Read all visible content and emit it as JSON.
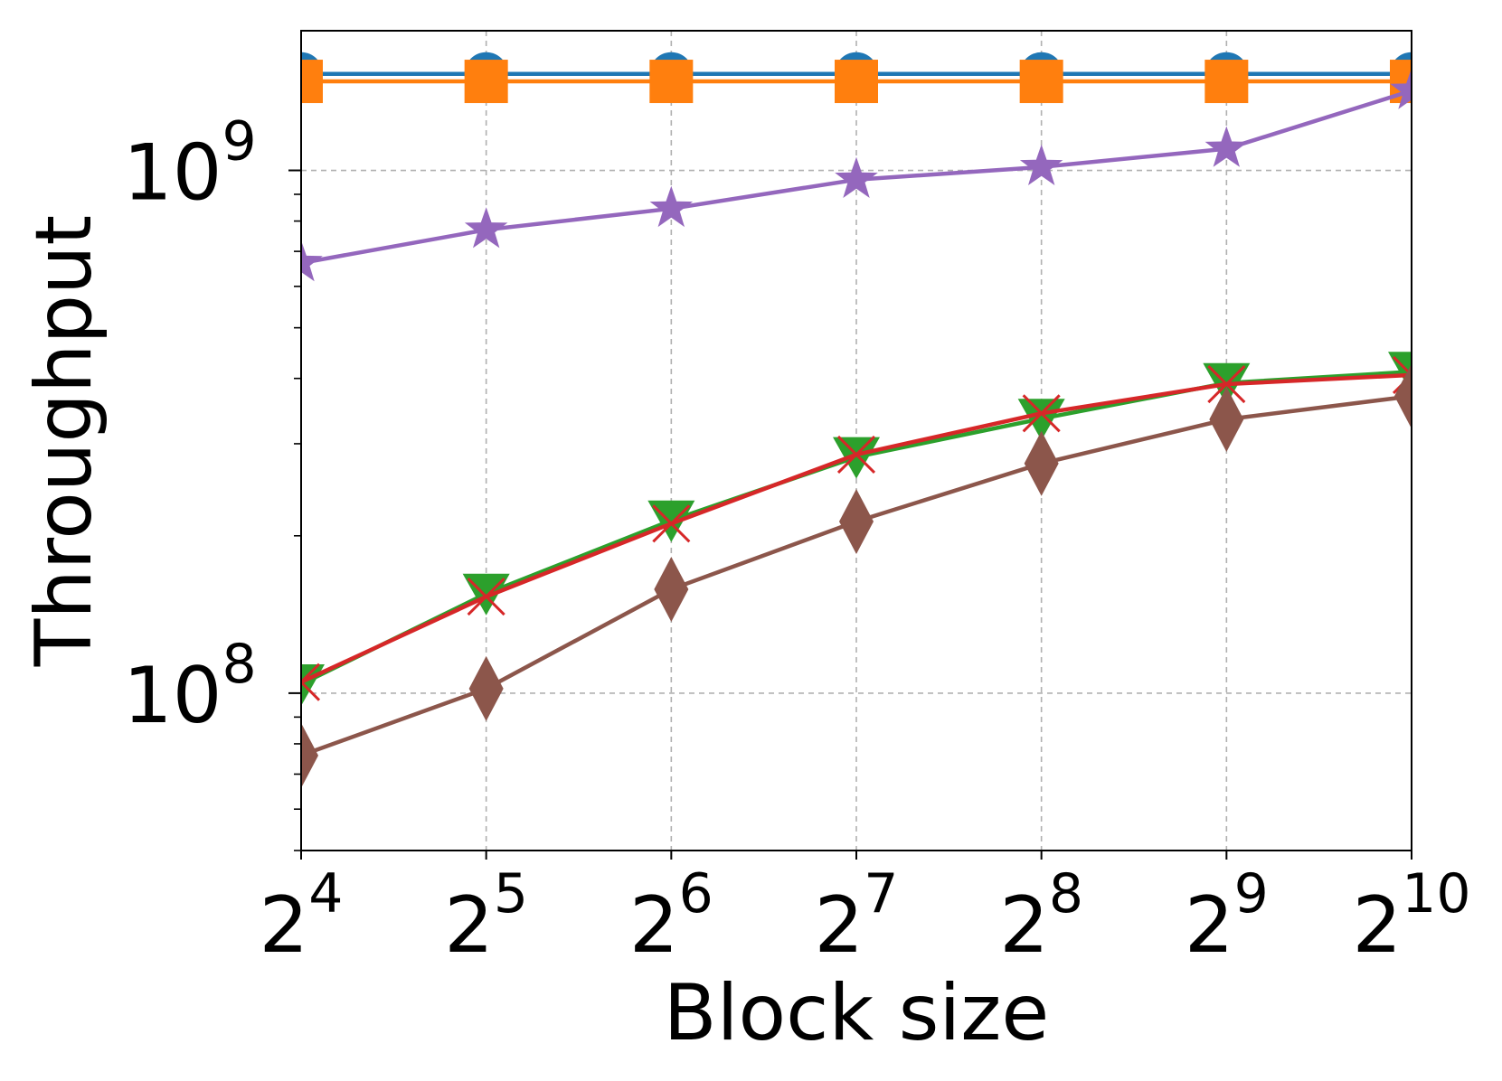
{
  "chart_data": {
    "type": "line",
    "xlabel": "Block size",
    "ylabel": "Throughput",
    "x_scale": "log2",
    "y_scale": "log10",
    "x": [
      16,
      32,
      64,
      128,
      256,
      512,
      1024
    ],
    "x_tick_labels": [
      {
        "base": "2",
        "exp": "4"
      },
      {
        "base": "2",
        "exp": "5"
      },
      {
        "base": "2",
        "exp": "6"
      },
      {
        "base": "2",
        "exp": "7"
      },
      {
        "base": "2",
        "exp": "8"
      },
      {
        "base": "2",
        "exp": "9"
      },
      {
        "base": "2",
        "exp": "10"
      }
    ],
    "y_major_ticks": [
      {
        "value": 100000000,
        "base": "10",
        "exp": "8"
      },
      {
        "value": 1000000000,
        "base": "10",
        "exp": "9"
      }
    ],
    "xlim": [
      16,
      1024
    ],
    "ylim": [
      50000000,
      1850000000
    ],
    "grid": true,
    "legend": "none",
    "series": [
      {
        "color": "#1f77b4",
        "marker": "circle",
        "values": [
          1530000000,
          1530000000,
          1530000000,
          1530000000,
          1530000000,
          1530000000,
          1530000000
        ]
      },
      {
        "color": "#ff7f0e",
        "marker": "square",
        "values": [
          1480000000,
          1480000000,
          1480000000,
          1480000000,
          1480000000,
          1480000000,
          1480000000
        ]
      },
      {
        "color": "#2ca02c",
        "marker": "triangle-down",
        "values": [
          104000000,
          155000000,
          214000000,
          283000000,
          335000000,
          392000000,
          412000000
        ]
      },
      {
        "color": "#d62728",
        "marker": "x",
        "values": [
          105000000,
          153000000,
          211000000,
          286000000,
          343000000,
          390000000,
          406000000
        ]
      },
      {
        "color": "#9467bd",
        "marker": "star",
        "values": [
          665000000,
          770000000,
          845000000,
          960000000,
          1015000000,
          1100000000,
          1420000000
        ]
      },
      {
        "color": "#8c564b",
        "marker": "diamond",
        "values": [
          76000000,
          102000000,
          158000000,
          213000000,
          275000000,
          334000000,
          370000000
        ]
      }
    ]
  }
}
